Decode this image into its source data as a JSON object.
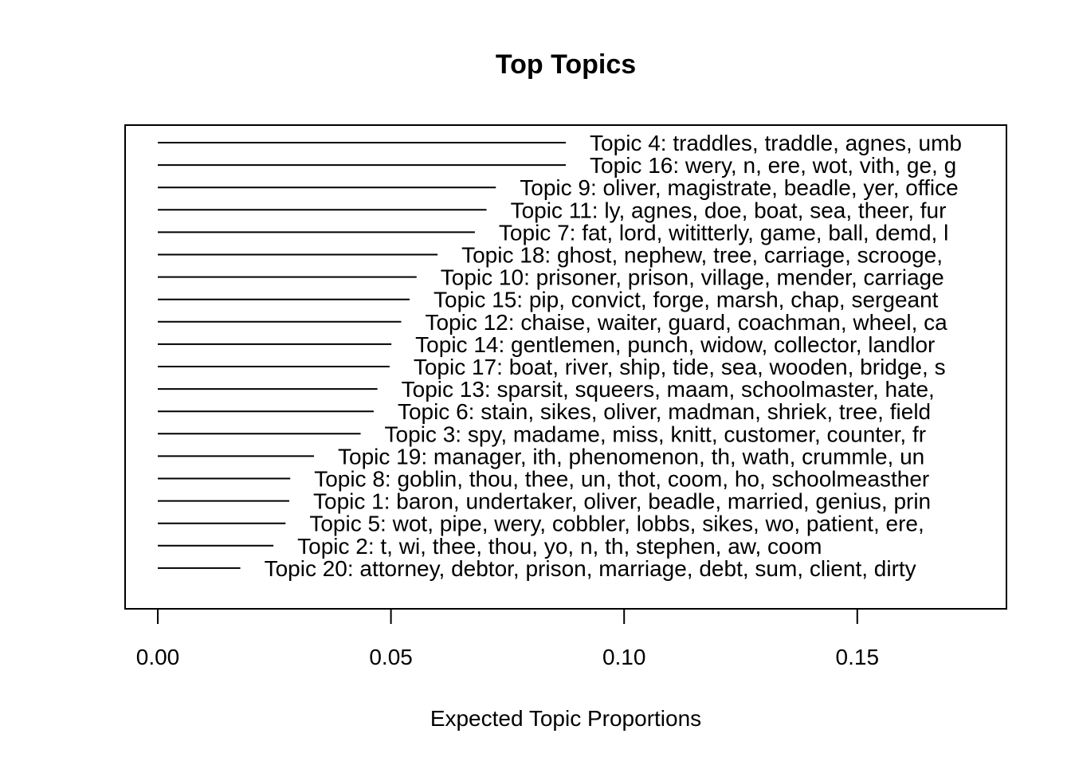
{
  "chart_data": {
    "type": "bar",
    "title": "Top Topics",
    "xlabel": "Expected Topic Proportions",
    "ylabel": "",
    "xlim": [
      0,
      0.18
    ],
    "xticks": [
      0.0,
      0.05,
      0.1,
      0.15
    ],
    "xtick_labels": [
      "0.00",
      "0.05",
      "0.10",
      "0.15"
    ],
    "legend": "none",
    "grid": false,
    "categories": [
      "Topic 4: traddles, traddle, agnes, umb",
      "Topic 16: wery, n, ere, wot, vith, ge, g",
      "Topic 9: oliver, magistrate, beadle, yer, office",
      "Topic 11: ly, agnes, doe, boat, sea, theer, fur",
      "Topic 7: fat, lord, wititterly, game, ball, demd, l",
      "Topic 18: ghost, nephew, tree, carriage, scrooge,",
      "Topic 10: prisoner, prison, village, mender, carriage",
      "Topic 15: pip, convict, forge, marsh, chap, sergeant",
      "Topic 12: chaise, waiter, guard, coachman, wheel, ca",
      "Topic 14: gentlemen, punch, widow, collector, landlor",
      "Topic 17: boat, river, ship, tide, sea, wooden, bridge, s",
      "Topic 13: sparsit, squeers, maam, schoolmaster, hate,",
      "Topic 6: stain, sikes, oliver, madman, shriek, tree, field",
      "Topic 3: spy, madame, miss, knitt, customer, counter, fr",
      "Topic 19: manager, ith, phenomenon, th, wath, crummle, un",
      "Topic 8: goblin, thou, thee, un, thot, coom, ho, schoolmeasther",
      "Topic 1: baron, undertaker, oliver, beadle, married, genius, prin",
      "Topic 5: wot, pipe, wery, cobbler, lobbs, sikes, wo, patient, ere,",
      "Topic 2: t, wi, thee, thou, yo, n, th, stephen, aw, coom",
      "Topic 20: attorney, debtor, prison, marriage, debt, sum, client, dirty"
    ],
    "values": [
      0.0875,
      0.0875,
      0.0725,
      0.0705,
      0.068,
      0.06,
      0.0555,
      0.054,
      0.0522,
      0.0501,
      0.0497,
      0.0471,
      0.0463,
      0.0435,
      0.0335,
      0.0284,
      0.0282,
      0.0274,
      0.0248,
      0.0177
    ]
  }
}
